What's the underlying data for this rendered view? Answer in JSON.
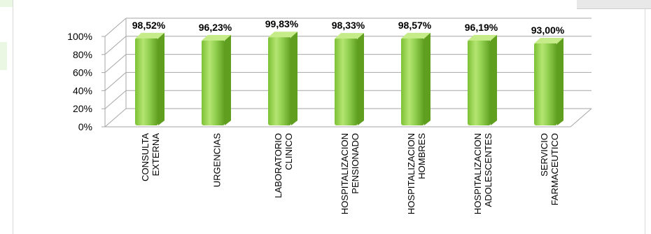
{
  "chart_data": {
    "type": "bar",
    "title": "",
    "xlabel": "",
    "ylabel": "",
    "ylim": [
      0,
      100
    ],
    "y_ticks": [
      "0%",
      "20%",
      "40%",
      "60%",
      "80%",
      "100%"
    ],
    "y_tick_values": [
      0,
      20,
      40,
      60,
      80,
      100
    ],
    "grid": true,
    "legend": "none",
    "bar_color": "#92d050",
    "bar_dark": "#5f9e1e",
    "bar_light": "#c6ec8a",
    "categories": [
      [
        "CONSULTA",
        "EXTERNA"
      ],
      [
        "URGENCIAS"
      ],
      [
        "LABORATORIO",
        "CLINICO"
      ],
      [
        "HOSPITALIZACION",
        "PENSIONADO"
      ],
      [
        "HOSPITALIZACION",
        "HOMBRES"
      ],
      [
        "HOSPITALIZACION",
        "ADOLESCENTES"
      ],
      [
        "SERVICIO",
        "FARMACEUTICO"
      ]
    ],
    "values": [
      98.52,
      96.23,
      99.83,
      98.33,
      98.57,
      96.19,
      93.0
    ],
    "data_labels": [
      "98,52%",
      "96,23%",
      "99,83%",
      "98,33%",
      "98,57%",
      "96,19%",
      "93,00%"
    ]
  }
}
